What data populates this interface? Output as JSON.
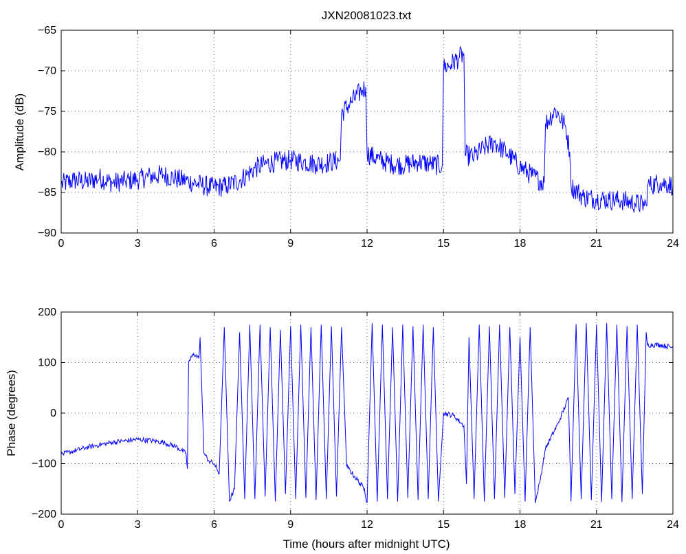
{
  "chart_data": [
    {
      "type": "line",
      "title": "JXN20081023.txt",
      "xlabel": "",
      "ylabel": "Amplitude (dB)",
      "xlim": [
        0,
        24
      ],
      "ylim": [
        -90,
        -65
      ],
      "xticks": [
        "0",
        "3",
        "6",
        "9",
        "12",
        "15",
        "18",
        "21",
        "24"
      ],
      "yticks": [
        "−90",
        "−85",
        "−80",
        "−75",
        "−70",
        "−65"
      ],
      "grid": true,
      "color": "#0000ff",
      "series": [
        {
          "x": [
            0,
            0.5,
            1,
            1.5,
            2,
            2.5,
            3,
            3.5,
            4,
            4.5,
            5,
            5.5,
            6,
            6.5,
            7,
            7.3,
            7.6,
            8,
            8.5,
            9,
            9.5,
            10,
            10.5,
            10.95,
            11.0,
            11.4,
            11.8,
            11.95,
            12.0,
            12.5,
            13,
            13.5,
            14,
            14.5,
            14.95,
            15.0,
            15.3,
            15.6,
            15.8,
            15.85,
            16.2,
            16.6,
            17,
            17.5,
            18,
            18.5,
            18.95,
            19.0,
            19.4,
            19.8,
            19.95,
            20.0,
            20.5,
            21,
            21.5,
            22,
            22.5,
            22.95,
            23.0,
            23.5,
            24
          ],
          "y": [
            -84,
            -83.5,
            -83.7,
            -83.2,
            -83.8,
            -83.6,
            -83.4,
            -83.0,
            -82.8,
            -83.3,
            -83.6,
            -84.1,
            -84.4,
            -84.2,
            -83.5,
            -82.8,
            -82.0,
            -81.5,
            -81.2,
            -81.0,
            -81.2,
            -81.5,
            -81.3,
            -81.0,
            -75.2,
            -73.8,
            -72.4,
            -72.0,
            -80.2,
            -81.0,
            -81.5,
            -81.6,
            -81.2,
            -81.5,
            -81.7,
            -69.6,
            -69.2,
            -68.4,
            -67.9,
            -80.4,
            -80.6,
            -79.5,
            -78.8,
            -80.2,
            -81.8,
            -83.0,
            -83.8,
            -76.5,
            -74.8,
            -77.0,
            -80.0,
            -84.2,
            -85.6,
            -85.8,
            -85.9,
            -86.0,
            -86.3,
            -86.6,
            -84.2,
            -83.8,
            -84.1
          ]
        }
      ]
    },
    {
      "type": "line",
      "title": "",
      "xlabel": "Time (hours after midnight UTC)",
      "ylabel": "Phase (degrees)",
      "xlim": [
        0,
        24
      ],
      "ylim": [
        -200,
        200
      ],
      "xticks": [
        "0",
        "3",
        "6",
        "9",
        "12",
        "15",
        "18",
        "21",
        "24"
      ],
      "yticks": [
        "−200",
        "−100",
        "0",
        "100",
        "200"
      ],
      "grid": true,
      "color": "#0000ff",
      "series": [
        {
          "x": [
            0,
            0.5,
            1,
            1.5,
            2,
            2.5,
            3,
            3.5,
            4,
            4.5,
            4.9,
            4.95,
            5.0,
            5.2,
            5.4,
            5.45,
            5.6,
            5.8,
            6.0,
            6.2,
            6.4,
            6.6,
            6.8,
            7.0,
            7.2,
            7.4,
            7.6,
            7.8,
            8.0,
            8.2,
            8.4,
            8.6,
            8.8,
            9.0,
            9.2,
            9.4,
            9.6,
            9.8,
            10.0,
            10.2,
            10.4,
            10.6,
            10.8,
            11.0,
            11.2,
            11.5,
            11.9,
            12.0,
            12.2,
            12.4,
            12.6,
            12.8,
            13.0,
            13.2,
            13.4,
            13.6,
            13.8,
            14.0,
            14.2,
            14.4,
            14.6,
            14.8,
            15.0,
            15.4,
            15.8,
            15.9,
            16.0,
            16.2,
            16.4,
            16.6,
            16.8,
            17.0,
            17.2,
            17.4,
            17.6,
            17.8,
            18.0,
            18.2,
            18.4,
            18.6,
            18.8,
            19.0,
            19.5,
            19.9,
            20.0,
            20.2,
            20.4,
            20.6,
            20.8,
            21.0,
            21.2,
            21.4,
            21.6,
            21.8,
            22.0,
            22.2,
            22.4,
            22.6,
            22.8,
            22.95,
            23.0,
            23.5,
            24
          ],
          "y": [
            -82,
            -75,
            -68,
            -63,
            -58,
            -55,
            -52,
            -54,
            -58,
            -66,
            -80,
            -110,
            100,
            118,
            108,
            150,
            -80,
            -95,
            -100,
            -120,
            170,
            -175,
            -150,
            160,
            -170,
            175,
            -170,
            175,
            -165,
            170,
            -175,
            165,
            -160,
            172,
            -170,
            175,
            -168,
            170,
            -172,
            175,
            -170,
            172,
            -165,
            170,
            -105,
            -125,
            -150,
            -178,
            178,
            -175,
            175,
            -170,
            170,
            -175,
            175,
            -168,
            172,
            -172,
            175,
            -170,
            170,
            -175,
            0,
            -5,
            -25,
            -140,
            150,
            -170,
            175,
            -175,
            172,
            -170,
            175,
            -168,
            170,
            -160,
            150,
            -175,
            170,
            -178,
            -130,
            -70,
            -20,
            30,
            -175,
            176,
            -170,
            178,
            -172,
            175,
            -176,
            178,
            -170,
            175,
            -176,
            172,
            -170,
            175,
            -160,
            160,
            135,
            135,
            130
          ]
        }
      ]
    }
  ]
}
